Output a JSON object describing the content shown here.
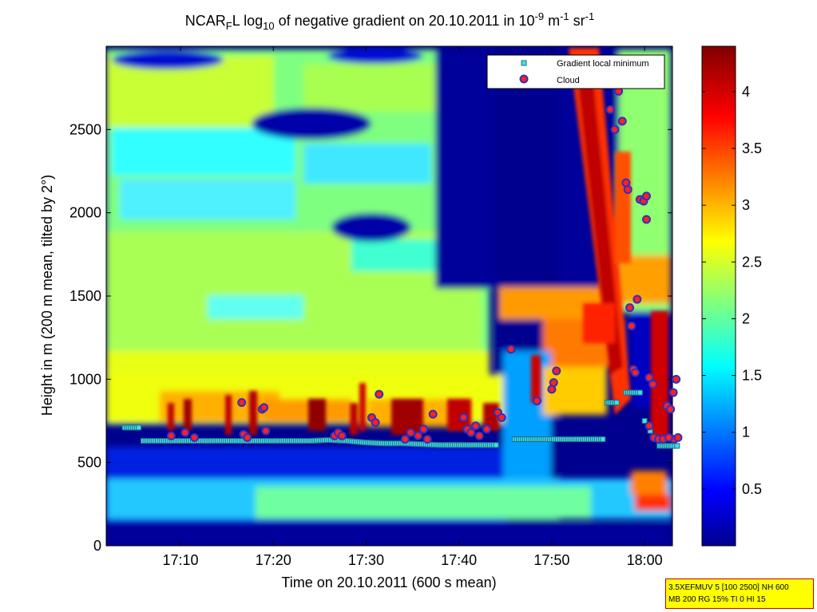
{
  "chart_data": {
    "type": "heatmap",
    "title": {
      "main": "NCAR",
      "sub1": "F",
      "mid1": "L log",
      "sub2": "10",
      "mid2": " of negative gradient on 20.10.2011 in 10",
      "sup1": "-9",
      "mid3": " m",
      "sup2": "-1",
      "mid4": " sr",
      "sup3": "-1"
    },
    "xlabel": "Time on 20.10.2011 (600 s mean)",
    "ylabel": "Height in m (200 m mean, tilted by 2°)",
    "x_range": [
      "17:02",
      "18:03"
    ],
    "x_ticks": [
      "17:10",
      "17:20",
      "17:30",
      "17:40",
      "17:50",
      "18:00"
    ],
    "ylim": [
      0,
      3000
    ],
    "y_ticks": [
      "0",
      "500",
      "1000",
      "1500",
      "2000",
      "2500"
    ],
    "colorbar": {
      "range": [
        0,
        4.4
      ],
      "ticks": [
        "0.5",
        "1",
        "1.5",
        "2",
        "2.5",
        "3",
        "3.5",
        "4"
      ],
      "colormap": "jet"
    },
    "legend": {
      "placement": "top-right",
      "entries": [
        {
          "label": "Gradient local minimum",
          "marker": "square",
          "color": "#40e0e0"
        },
        {
          "label": "Cloud",
          "marker": "circle",
          "color": "#ff2020",
          "edge": "#3030c0"
        }
      ]
    },
    "series": [
      {
        "name": "Gradient local minimum",
        "points": [
          {
            "t": 2.0,
            "h": 710
          },
          {
            "t": 3.5,
            "h": 710
          },
          {
            "t": 4.0,
            "h": 630
          },
          {
            "t": 6.0,
            "h": 630
          },
          {
            "t": 8.0,
            "h": 630
          },
          {
            "t": 10.0,
            "h": 630
          },
          {
            "t": 12.0,
            "h": 630
          },
          {
            "t": 14.0,
            "h": 630
          },
          {
            "t": 16.0,
            "h": 630
          },
          {
            "t": 18.0,
            "h": 630
          },
          {
            "t": 20.0,
            "h": 630
          },
          {
            "t": 22.0,
            "h": 630
          },
          {
            "t": 24.0,
            "h": 635
          },
          {
            "t": 26.0,
            "h": 630
          },
          {
            "t": 28.0,
            "h": 620
          },
          {
            "t": 30.0,
            "h": 615
          },
          {
            "t": 32.0,
            "h": 615
          },
          {
            "t": 34.0,
            "h": 610
          },
          {
            "t": 36.0,
            "h": 605
          },
          {
            "t": 38.0,
            "h": 605
          },
          {
            "t": 40.0,
            "h": 605
          },
          {
            "t": 42.0,
            "h": 605
          },
          {
            "t": 44.0,
            "h": 640
          },
          {
            "t": 46.0,
            "h": 640
          },
          {
            "t": 48.0,
            "h": 640
          },
          {
            "t": 50.0,
            "h": 640
          },
          {
            "t": 52.0,
            "h": 640
          },
          {
            "t": 53.5,
            "h": 640
          },
          {
            "t": 54.0,
            "h": 860
          },
          {
            "t": 55.0,
            "h": 860
          },
          {
            "t": 56.0,
            "h": 920
          },
          {
            "t": 57.5,
            "h": 920
          },
          {
            "t": 58.0,
            "h": 750
          },
          {
            "t": 58.6,
            "h": 690
          },
          {
            "t": 59.2,
            "h": 640
          },
          {
            "t": 59.6,
            "h": 600
          },
          {
            "t": 60.2,
            "h": 600
          },
          {
            "t": 61.0,
            "h": 600
          },
          {
            "t": 61.5,
            "h": 600
          }
        ]
      },
      {
        "name": "Cloud",
        "points": [
          {
            "t": 7.0,
            "h": 660
          },
          {
            "t": 8.5,
            "h": 680
          },
          {
            "t": 9.5,
            "h": 650
          },
          {
            "t": 14.6,
            "h": 860
          },
          {
            "t": 14.8,
            "h": 670
          },
          {
            "t": 15.2,
            "h": 650
          },
          {
            "t": 16.8,
            "h": 820
          },
          {
            "t": 17.0,
            "h": 830
          },
          {
            "t": 17.2,
            "h": 690
          },
          {
            "t": 24.6,
            "h": 660
          },
          {
            "t": 25.0,
            "h": 680
          },
          {
            "t": 25.4,
            "h": 660
          },
          {
            "t": 28.6,
            "h": 770
          },
          {
            "t": 29.0,
            "h": 740
          },
          {
            "t": 29.4,
            "h": 910
          },
          {
            "t": 32.2,
            "h": 640
          },
          {
            "t": 32.8,
            "h": 680
          },
          {
            "t": 33.6,
            "h": 660
          },
          {
            "t": 34.2,
            "h": 700
          },
          {
            "t": 34.6,
            "h": 640
          },
          {
            "t": 35.2,
            "h": 790
          },
          {
            "t": 38.5,
            "h": 770
          },
          {
            "t": 38.9,
            "h": 700
          },
          {
            "t": 39.3,
            "h": 680
          },
          {
            "t": 39.8,
            "h": 720
          },
          {
            "t": 40.2,
            "h": 660
          },
          {
            "t": 41.0,
            "h": 700
          },
          {
            "t": 42.2,
            "h": 800
          },
          {
            "t": 42.6,
            "h": 770
          },
          {
            "t": 43.6,
            "h": 1180
          },
          {
            "t": 46.4,
            "h": 870
          },
          {
            "t": 48.0,
            "h": 940
          },
          {
            "t": 48.2,
            "h": 980
          },
          {
            "t": 48.5,
            "h": 1050
          },
          {
            "t": 54.3,
            "h": 2620
          },
          {
            "t": 54.8,
            "h": 2500
          },
          {
            "t": 55.2,
            "h": 2730
          },
          {
            "t": 55.6,
            "h": 2550
          },
          {
            "t": 56.0,
            "h": 2180
          },
          {
            "t": 56.2,
            "h": 2140
          },
          {
            "t": 56.4,
            "h": 1430
          },
          {
            "t": 56.6,
            "h": 1320
          },
          {
            "t": 56.8,
            "h": 1060
          },
          {
            "t": 57.0,
            "h": 1040
          },
          {
            "t": 57.2,
            "h": 1480
          },
          {
            "t": 57.5,
            "h": 2080
          },
          {
            "t": 57.9,
            "h": 2070
          },
          {
            "t": 58.2,
            "h": 2100
          },
          {
            "t": 58.2,
            "h": 1960
          },
          {
            "t": 58.5,
            "h": 1010
          },
          {
            "t": 58.9,
            "h": 970
          },
          {
            "t": 58.5,
            "h": 720
          },
          {
            "t": 59.0,
            "h": 650
          },
          {
            "t": 59.5,
            "h": 640
          },
          {
            "t": 60.0,
            "h": 640
          },
          {
            "t": 60.4,
            "h": 840
          },
          {
            "t": 60.8,
            "h": 820
          },
          {
            "t": 61.1,
            "h": 920
          },
          {
            "t": 61.4,
            "h": 1000
          },
          {
            "t": 61.2,
            "h": 640
          },
          {
            "t": 61.6,
            "h": 650
          },
          {
            "t": 60.6,
            "h": 650
          }
        ]
      }
    ]
  },
  "info_box": {
    "line1": "3.5XEFMUV 5 [100 2500] NH 600",
    "line2": "MB 200 RG 15% TI 0 HI 15"
  },
  "colors": {
    "field_low": "#00008f",
    "field_high": "#800000",
    "info_box_bg": "#ffff00",
    "info_box_border": "#c00000"
  }
}
